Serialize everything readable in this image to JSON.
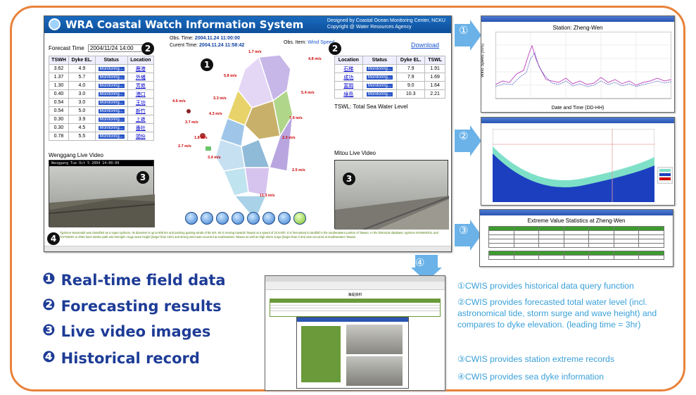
{
  "app": {
    "title": "WRA Coastal Watch Information System",
    "credit_line1": "Designed by Coastal Ocean Monitoring Center, NCKU",
    "credit_line2": "Copyright @ Water Resources Agency",
    "forecast_time_label": "Forecast Time",
    "forecast_time_value": "2004/11/24 14:00",
    "obs_time_label": "Obs. Time:",
    "obs_time_value": "2004.11.24   11:00:00",
    "current_time_label": "Curent Time:",
    "current_time_value": "2004.11.24   11:58:42",
    "obs_item_label": "Obs. Item:",
    "obs_item_value": "Wind Speed",
    "download_label": "Download",
    "left_table": {
      "headers": [
        "TSWH",
        "Dyke EL.",
        "Status",
        "Location"
      ],
      "rows": [
        [
          "3.62",
          "4.9",
          "Monitoring...",
          "鹿港"
        ],
        [
          "1.37",
          "5.7",
          "Monitoring...",
          "外埔"
        ],
        [
          "1.30",
          "4.0",
          "Monitoring...",
          "芳苑"
        ],
        [
          "0.40",
          "3.0",
          "Monitoring...",
          "港口"
        ],
        [
          "0.54",
          "3.0",
          "Monitoring...",
          "王功"
        ],
        [
          "0.54",
          "5.0",
          "Monitoring...",
          "新竹"
        ],
        [
          "0.30",
          "3.9",
          "Monitoring...",
          "上崁"
        ],
        [
          "0.30",
          "4.5",
          "Monitoring...",
          "番社"
        ],
        [
          "0.78",
          "5.5",
          "Monitoring...",
          "頭份"
        ]
      ]
    },
    "right_table": {
      "headers": [
        "Location",
        "Status",
        "Dyke EL.",
        "TSWL"
      ],
      "rows": [
        [
          "石梯",
          "Monitoring...",
          "7.9",
          "1.91"
        ],
        [
          "成功",
          "Monitoring...",
          "7.9",
          "1.69"
        ],
        [
          "富岡",
          "Monitoring...",
          "9.0",
          "1.64"
        ],
        [
          "綠島",
          "Monitoring...",
          "10.3",
          "2.21"
        ]
      ]
    },
    "tswl_note": "TSWL: Total Sea Water Level",
    "wenggang_label": "Wenggang Live Video",
    "wenggang_bar": "Wenggang  Tue Oct 5 2004  14:00:00",
    "mitou_label": "Mitou Live Video",
    "footer_text": "Typhoon Nanmadol was classified as a super typhoon. Its diameter is up to 800 km and packing gusting winds of 65 m/s. Its is moving towards Taiwan at a speed of 22 km/hr. It is forecasted to landfall in the southeastern portion of Taiwan. In the historical database, typhoon NANMADOL and TAITSENG in 2004 have similar path and strength. Huge wave height (larger than 10m) and strong wind was occurred at southeastern Taiwan as well as high storm surge (larger than 0.3m) was occurred at southwestern Taiwan.",
    "wind_labels": [
      "1.7 m/s",
      "4.8 m/s",
      "5.8 m/s",
      "3.3 m/s",
      "5.4 m/s",
      "4.6 m/s",
      "4.3 m/s",
      "7.9 m/s",
      "3.7 m/s",
      "1.8 m/s",
      "2.3 m/s",
      "2.7 m/s",
      "3.4 m/s",
      "2.5 m/s",
      "11.3 m/s"
    ]
  },
  "windows": {
    "w1_title": "Station: Zheng-Wen",
    "w1_xlabel": "Date and Time (DD-HH)",
    "w1_ylabel": "Wind Speed (m/s)",
    "w3_title": "Extreme Value Statistics at Zheng-Wen",
    "w4_title": "海堤資料"
  },
  "legend": [
    {
      "num": "❶",
      "label": "Real-time field data"
    },
    {
      "num": "❷",
      "label": "Forecasting results"
    },
    {
      "num": "❸",
      "label": "Live video images"
    },
    {
      "num": "❹",
      "label": "Historical record"
    }
  ],
  "descriptions": {
    "d1": "①CWIS provides historical data query function",
    "d2": "②CWIS provides forecasted total water level (incl. astronomical tide, storm surge and wave height) and compares to dyke elevation. (leading time = 3hr)",
    "d3": "③CWIS provides station extreme records",
    "d4": "④CWIS provides sea dyke information"
  },
  "circled_numbers": [
    "①",
    "②",
    "③",
    "④"
  ],
  "badges": [
    "2",
    "2",
    "3",
    "3",
    "4",
    "1"
  ],
  "colors": {
    "frame": "#e8823a",
    "header": "#0d4f9a",
    "legend": "#1e3c96",
    "desc": "#3aa0d8"
  }
}
